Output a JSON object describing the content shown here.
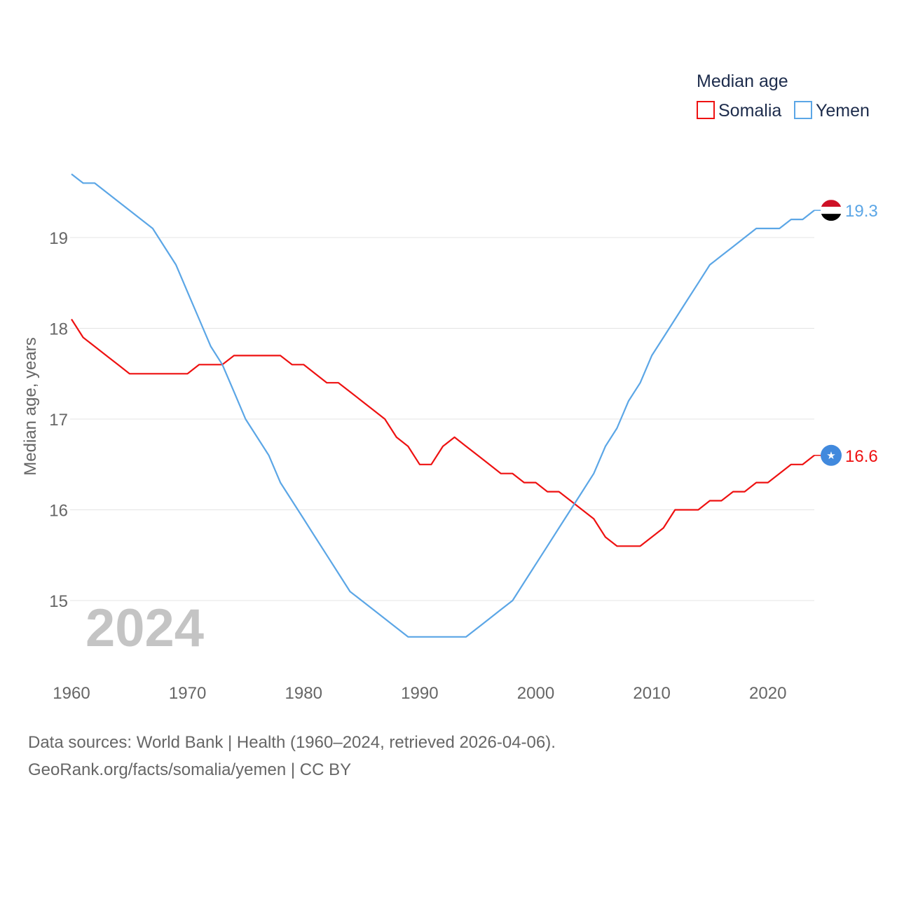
{
  "chart_data": {
    "type": "line",
    "legend_title": "Median age",
    "ylabel": "Median age, years",
    "year_label": "2024",
    "ylim": [
      14.3,
      20.0
    ],
    "xlim": [
      1960,
      2024
    ],
    "yticks": [
      "15",
      "16",
      "17",
      "18",
      "19"
    ],
    "xticks": [
      "1960",
      "1970",
      "1980",
      "1990",
      "2000",
      "2010",
      "2020"
    ],
    "series": [
      {
        "name": "Somalia",
        "color": "#ee1111",
        "end_label": "16.6",
        "flag": "somalia-flag",
        "x": [
          1960,
          1961,
          1962,
          1963,
          1964,
          1965,
          1966,
          1967,
          1968,
          1969,
          1970,
          1971,
          1972,
          1973,
          1974,
          1975,
          1976,
          1977,
          1978,
          1979,
          1980,
          1981,
          1982,
          1983,
          1984,
          1985,
          1986,
          1987,
          1988,
          1989,
          1990,
          1991,
          1992,
          1993,
          1994,
          1995,
          1996,
          1997,
          1998,
          1999,
          2000,
          2001,
          2002,
          2003,
          2004,
          2005,
          2006,
          2007,
          2008,
          2009,
          2010,
          2011,
          2012,
          2013,
          2014,
          2015,
          2016,
          2017,
          2018,
          2019,
          2020,
          2021,
          2022,
          2023,
          2024
        ],
        "values": [
          18.1,
          17.9,
          17.8,
          17.7,
          17.6,
          17.5,
          17.5,
          17.5,
          17.5,
          17.5,
          17.5,
          17.6,
          17.6,
          17.6,
          17.7,
          17.7,
          17.7,
          17.7,
          17.7,
          17.6,
          17.6,
          17.5,
          17.4,
          17.4,
          17.3,
          17.2,
          17.1,
          17.0,
          16.8,
          16.7,
          16.5,
          16.5,
          16.7,
          16.8,
          16.7,
          16.6,
          16.5,
          16.4,
          16.4,
          16.3,
          16.3,
          16.2,
          16.2,
          16.1,
          16.0,
          15.9,
          15.7,
          15.6,
          15.6,
          15.6,
          15.7,
          15.8,
          16.0,
          16.0,
          16.0,
          16.1,
          16.1,
          16.2,
          16.2,
          16.3,
          16.3,
          16.4,
          16.5,
          16.5,
          16.6
        ]
      },
      {
        "name": "Yemen",
        "color": "#5ba6e6",
        "end_label": "19.3",
        "flag": "yemen-flag",
        "x": [
          1960,
          1961,
          1962,
          1963,
          1964,
          1965,
          1966,
          1967,
          1968,
          1969,
          1970,
          1971,
          1972,
          1973,
          1974,
          1975,
          1976,
          1977,
          1978,
          1979,
          1980,
          1981,
          1982,
          1983,
          1984,
          1985,
          1986,
          1987,
          1988,
          1989,
          1990,
          1991,
          1992,
          1993,
          1994,
          1995,
          1996,
          1997,
          1998,
          1999,
          2000,
          2001,
          2002,
          2003,
          2004,
          2005,
          2006,
          2007,
          2008,
          2009,
          2010,
          2011,
          2012,
          2013,
          2014,
          2015,
          2016,
          2017,
          2018,
          2019,
          2020,
          2021,
          2022,
          2023,
          2024
        ],
        "values": [
          19.7,
          19.6,
          19.6,
          19.5,
          19.4,
          19.3,
          19.2,
          19.1,
          18.9,
          18.7,
          18.4,
          18.1,
          17.8,
          17.6,
          17.3,
          17.0,
          16.8,
          16.6,
          16.3,
          16.1,
          15.9,
          15.7,
          15.5,
          15.3,
          15.1,
          15.0,
          14.9,
          14.8,
          14.7,
          14.6,
          14.6,
          14.6,
          14.6,
          14.6,
          14.6,
          14.7,
          14.8,
          14.9,
          15.0,
          15.2,
          15.4,
          15.6,
          15.8,
          16.0,
          16.2,
          16.4,
          16.7,
          16.9,
          17.2,
          17.4,
          17.7,
          17.9,
          18.1,
          18.3,
          18.5,
          18.7,
          18.8,
          18.9,
          19.0,
          19.1,
          19.1,
          19.1,
          19.2,
          19.2,
          19.3
        ]
      }
    ]
  },
  "footer": {
    "line1": "Data sources: World Bank | Health (1960–2024, retrieved 2026-04-06).",
    "line2": "GeoRank.org/facts/somalia/yemen | CC BY"
  }
}
